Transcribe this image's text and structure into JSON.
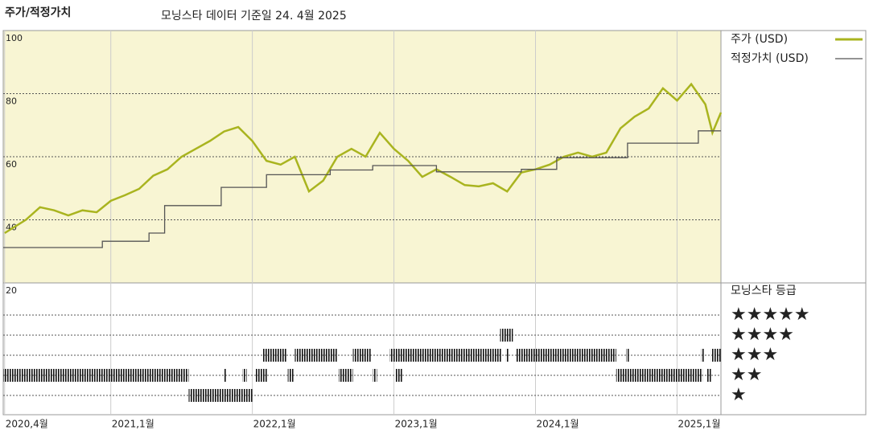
{
  "chart_data": {
    "type": "line",
    "title": "주가/적정가치",
    "subtitle": "모닝스타 데이터 기준일 24. 4월 2025",
    "xlim": [
      2020.24,
      2025.31
    ],
    "xticks": [
      {
        "value": 2020.25,
        "label": "2020,4월"
      },
      {
        "value": 2021,
        "label": "2021,1월"
      },
      {
        "value": 2022,
        "label": "2022,1월"
      },
      {
        "value": 2023,
        "label": "2023,1월"
      },
      {
        "value": 2024,
        "label": "2024,1월"
      },
      {
        "value": 2025,
        "label": "2025,1월"
      }
    ],
    "ylim": [
      20,
      100
    ],
    "yticks": [
      20,
      40,
      60,
      80,
      100
    ],
    "grid": true,
    "series": [
      {
        "name": "주가 (USD)",
        "color": "#a9b41f",
        "x": [
          2020.25,
          2020.4,
          2020.5,
          2020.6,
          2020.7,
          2020.8,
          2020.9,
          2021.0,
          2021.1,
          2021.2,
          2021.3,
          2021.4,
          2021.5,
          2021.6,
          2021.7,
          2021.8,
          2021.9,
          2022.0,
          2022.1,
          2022.2,
          2022.3,
          2022.4,
          2022.5,
          2022.6,
          2022.7,
          2022.8,
          2022.9,
          2023.0,
          2023.1,
          2023.2,
          2023.3,
          2023.4,
          2023.5,
          2023.6,
          2023.7,
          2023.8,
          2023.9,
          2024.0,
          2024.1,
          2024.2,
          2024.3,
          2024.4,
          2024.5,
          2024.6,
          2024.7,
          2024.8,
          2024.9,
          2025.0,
          2025.1,
          2025.2,
          2025.25,
          2025.31
        ],
        "values": [
          35.8,
          40,
          44,
          43,
          41.4,
          43,
          42.4,
          46,
          47.8,
          49.8,
          54,
          56,
          60,
          62.5,
          65,
          68,
          69.4,
          65,
          58.7,
          57.5,
          60,
          49,
          52.4,
          60,
          62.5,
          60,
          67.6,
          62.5,
          58.7,
          53.6,
          56,
          53.6,
          51,
          50.6,
          51.6,
          49,
          55,
          56,
          57.5,
          60,
          61.3,
          60,
          61.3,
          69,
          72.7,
          75.3,
          81.7,
          77.8,
          83,
          76.6,
          67.6,
          74
        ]
      },
      {
        "name": "적정가치 (USD)",
        "color": "#555555",
        "x": [
          2020.24,
          2020.94,
          2020.94,
          2021.27,
          2021.27,
          2021.38,
          2021.38,
          2021.78,
          2021.78,
          2022.1,
          2022.1,
          2022.55,
          2022.55,
          2022.85,
          2022.85,
          2023.3,
          2023.3,
          2023.9,
          2023.9,
          2024.15,
          2024.15,
          2024.65,
          2024.65,
          2025.15,
          2025.15,
          2025.31
        ],
        "values": [
          31.2,
          31.2,
          33.2,
          33.2,
          35.8,
          35.8,
          44.5,
          44.5,
          50.3,
          50.3,
          54.3,
          54.3,
          55.8,
          55.8,
          57.2,
          57.2,
          55.2,
          55.2,
          56,
          56,
          59.7,
          59.7,
          64.3,
          64.3,
          68.2,
          68.2
        ]
      }
    ],
    "rating_title": "모닝스타 등급",
    "rating_labels": [
      "★★★★★",
      "★★★★",
      "★★★",
      "★★",
      "★"
    ],
    "ratings": [
      {
        "start": 2020.24,
        "end": 2021.55,
        "stars": 2
      },
      {
        "start": 2021.55,
        "end": 2022.0,
        "stars": 1
      },
      {
        "start": 2021.8,
        "end": 2021.82,
        "stars": 2
      },
      {
        "start": 2021.93,
        "end": 2021.96,
        "stars": 2
      },
      {
        "start": 2022.02,
        "end": 2022.11,
        "stars": 2
      },
      {
        "start": 2022.07,
        "end": 2022.24,
        "stars": 3
      },
      {
        "start": 2022.25,
        "end": 2022.29,
        "stars": 2
      },
      {
        "start": 2022.3,
        "end": 2022.6,
        "stars": 3
      },
      {
        "start": 2022.61,
        "end": 2022.71,
        "stars": 2
      },
      {
        "start": 2022.71,
        "end": 2022.84,
        "stars": 3
      },
      {
        "start": 2022.85,
        "end": 2022.88,
        "stars": 2
      },
      {
        "start": 2022.97,
        "end": 2023.76,
        "stars": 3
      },
      {
        "start": 2023.01,
        "end": 2023.06,
        "stars": 2
      },
      {
        "start": 2023.75,
        "end": 2023.84,
        "stars": 4
      },
      {
        "start": 2023.79,
        "end": 2023.81,
        "stars": 3
      },
      {
        "start": 2023.86,
        "end": 2024.57,
        "stars": 3
      },
      {
        "start": 2024.57,
        "end": 2025.18,
        "stars": 2
      },
      {
        "start": 2024.64,
        "end": 2024.66,
        "stars": 3
      },
      {
        "start": 2025.17,
        "end": 2025.19,
        "stars": 3
      },
      {
        "start": 2025.21,
        "end": 2025.24,
        "stars": 2
      },
      {
        "start": 2025.24,
        "end": 2025.31,
        "stars": 3
      }
    ]
  }
}
